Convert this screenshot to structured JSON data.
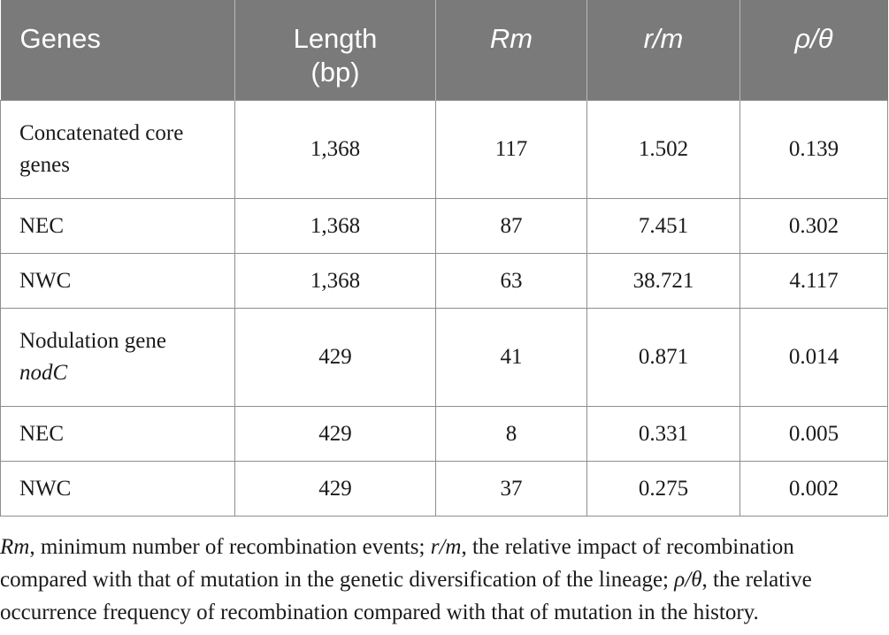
{
  "table": {
    "headers": [
      {
        "text": "Genes",
        "italic": false
      },
      {
        "text": "Length (bp)",
        "italic": false
      },
      {
        "text": "Rm",
        "italic": true
      },
      {
        "text": "r/m",
        "italic": true
      },
      {
        "text": "ρ/θ",
        "italic": true
      }
    ],
    "rows": [
      {
        "gene": "Concatenated core genes",
        "gene_italic": "",
        "length": "1,368",
        "rm": "117",
        "r_m": "1.502",
        "rho_theta": "0.139"
      },
      {
        "gene": "NEC",
        "gene_italic": "",
        "length": "1,368",
        "rm": "87",
        "r_m": "7.451",
        "rho_theta": "0.302"
      },
      {
        "gene": "NWC",
        "gene_italic": "",
        "length": "1,368",
        "rm": "63",
        "r_m": "38.721",
        "rho_theta": "4.117"
      },
      {
        "gene": "Nodulation gene",
        "gene_italic": "nodC",
        "length": "429",
        "rm": "41",
        "r_m": "0.871",
        "rho_theta": "0.014"
      },
      {
        "gene": "NEC",
        "gene_italic": "",
        "length": "429",
        "rm": "8",
        "r_m": "0.331",
        "rho_theta": "0.005"
      },
      {
        "gene": "NWC",
        "gene_italic": "",
        "length": "429",
        "rm": "37",
        "r_m": "0.275",
        "rho_theta": "0.002"
      }
    ]
  },
  "footnote": {
    "term1": "Rm",
    "text1": ", minimum number of recombination events; ",
    "term2": "r/m",
    "text2": ", the relative impact of recombination compared with that of mutation in the genetic diversification of the lineage; ",
    "term3": "ρ/θ",
    "text3": ", the relative occurrence frequency of recombination compared with that of mutation in the history."
  }
}
